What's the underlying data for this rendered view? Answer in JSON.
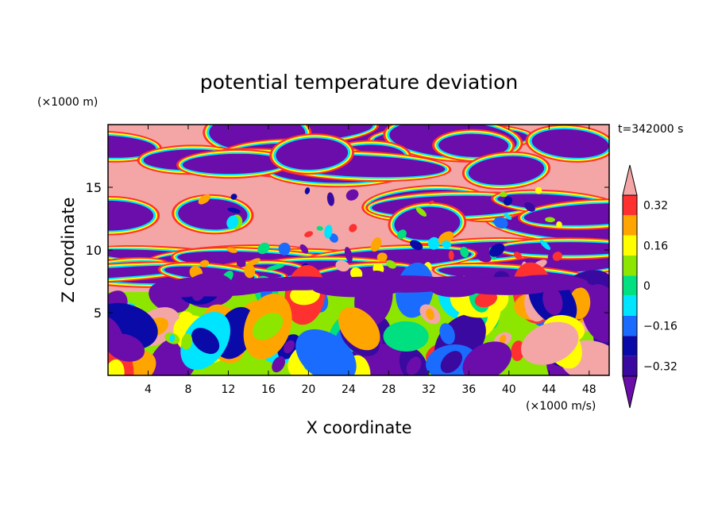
{
  "chart_data": {
    "type": "heatmap",
    "title": "potential temperature deviation",
    "xlabel": "X coordinate",
    "ylabel": "Z coordinate",
    "x_unit": "(×1000 m/s)",
    "y_unit": "(×1000 m)",
    "time_label": "t=342000 s",
    "xlim": [
      0,
      50
    ],
    "ylim": [
      0,
      20
    ],
    "x_ticks": [
      4,
      8,
      12,
      16,
      20,
      24,
      28,
      32,
      36,
      40,
      44,
      48
    ],
    "y_ticks": [
      5,
      10,
      15
    ],
    "colorbar": {
      "levels": [
        -0.4,
        -0.32,
        -0.24,
        -0.16,
        -0.08,
        0,
        0.08,
        0.16,
        0.24,
        0.32,
        0.4
      ],
      "labels": [
        "0.32",
        "0.16",
        "0",
        "−0.16",
        "−0.32"
      ],
      "label_values": [
        0.32,
        0.16,
        0,
        -0.16,
        -0.32
      ],
      "colors": [
        "#6a0dab",
        "#3a0aa0",
        "#0a0aa8",
        "#1a6cff",
        "#00e5ff",
        "#00e080",
        "#8ce600",
        "#ffff00",
        "#ffa500",
        "#ff3030",
        "#f4a6a6"
      ],
      "extend": "both"
    }
  }
}
